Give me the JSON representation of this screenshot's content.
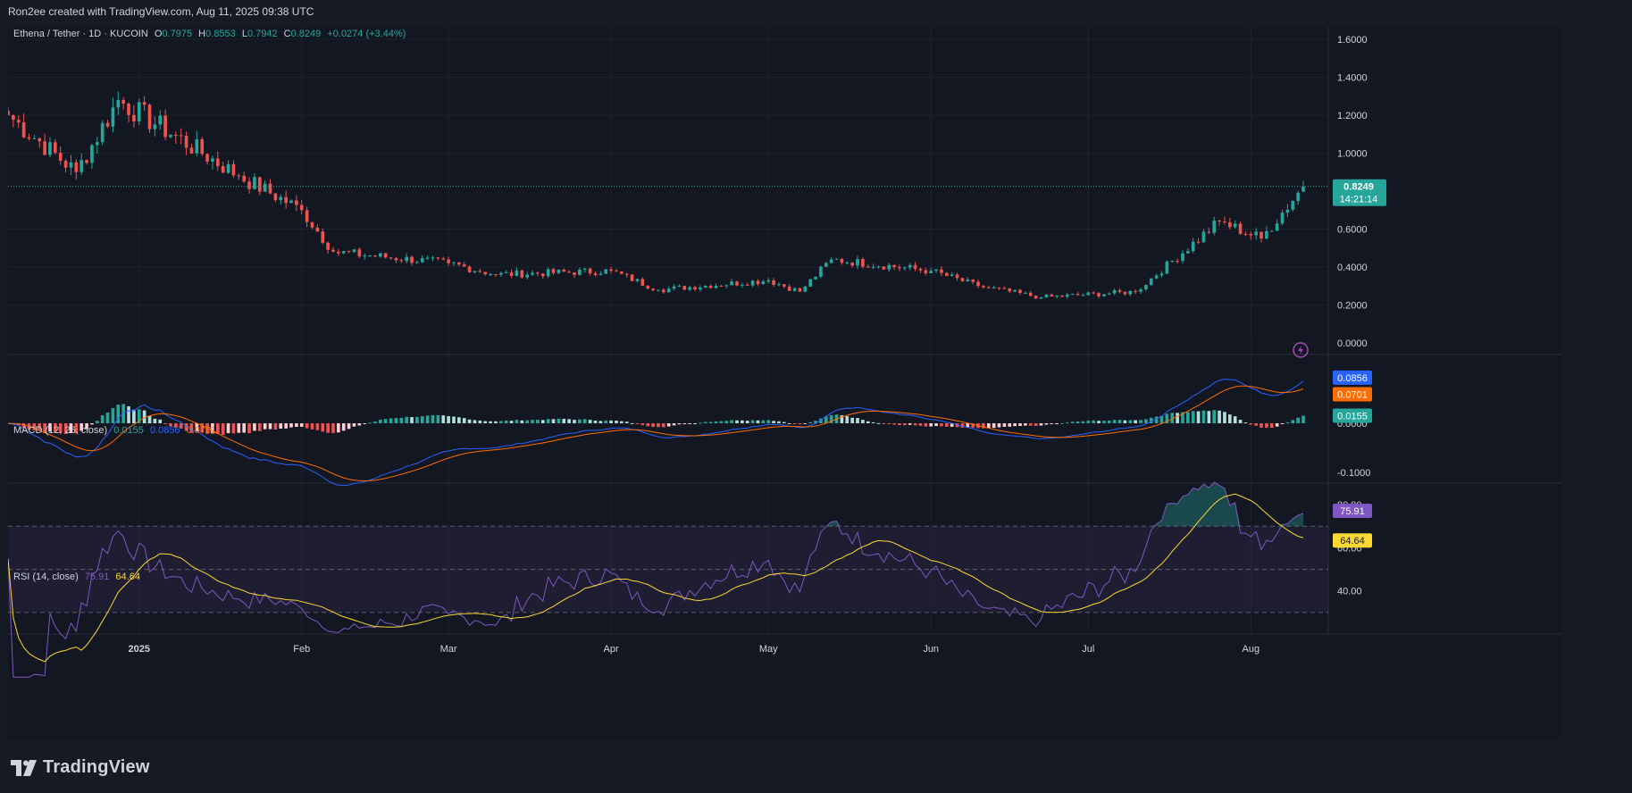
{
  "attribution": "Ron2ee created with TradingView.com, Aug 11, 2025 09:38 UTC",
  "brand": "TradingView",
  "icons": {
    "logo": "tradingview-logo-icon",
    "flash": "lightning-icon"
  },
  "colors": {
    "up": "#26a69a",
    "down": "#ef5350",
    "macd": "#2962ff",
    "signal": "#ff6d00",
    "rsi": "#7e57c2",
    "rsi_ma": "#fdd835"
  },
  "price_legend": {
    "symbol": "Ethena / Tether · 1D · KUCOIN",
    "o_label": "O",
    "o": "0.7975",
    "h_label": "H",
    "h": "0.8553",
    "l_label": "L",
    "l": "0.7942",
    "c_label": "C",
    "c": "0.8249",
    "change": "+0.0274 (+3.44%)"
  },
  "macd_legend": {
    "title": "MACD (12, 26, close)",
    "hist": "0.0155",
    "macd": "0.0856",
    "signal": "0.0701"
  },
  "rsi_legend": {
    "title": "RSI (14, close)",
    "rsi": "75.91",
    "ma": "64.64"
  },
  "price_badge": {
    "price": "0.8249",
    "countdown": "14:21:14"
  },
  "macd_badges": {
    "macd": "0.0856",
    "signal": "0.0701",
    "hist": "0.0155"
  },
  "rsi_badges": {
    "rsi": "75.91",
    "ma": "64.64"
  },
  "chart_data": [
    {
      "type": "candlestick",
      "title": "Ethena / Tether · 1D · KUCOIN",
      "ylim": [
        0,
        1.6
      ],
      "y_ticks": [
        "1.6000",
        "1.4000",
        "1.2000",
        "1.0000",
        "0.6000",
        "0.4000",
        "0.2000",
        "0.0000"
      ],
      "x_ticks": [
        {
          "label": "2025",
          "date": "2025-01-01"
        },
        {
          "label": "Feb",
          "date": "2025-02-01"
        },
        {
          "label": "Mar",
          "date": "2025-03-01"
        },
        {
          "label": "Apr",
          "date": "2025-04-01"
        },
        {
          "label": "May",
          "date": "2025-05-01"
        },
        {
          "label": "Jun",
          "date": "2025-06-01"
        },
        {
          "label": "Jul",
          "date": "2025-07-01"
        },
        {
          "label": "Aug",
          "date": "2025-08-01"
        }
      ],
      "start_date": "2024-12-07",
      "end_date": "2025-08-11",
      "key_closes": [
        {
          "date": "2024-12-07",
          "close": 1.2
        },
        {
          "date": "2024-12-20",
          "close": 0.9
        },
        {
          "date": "2024-12-28",
          "close": 1.28
        },
        {
          "date": "2025-01-20",
          "close": 0.88
        },
        {
          "date": "2025-02-01",
          "close": 0.7
        },
        {
          "date": "2025-02-07",
          "close": 0.48
        },
        {
          "date": "2025-03-01",
          "close": 0.42
        },
        {
          "date": "2025-03-10",
          "close": 0.36
        },
        {
          "date": "2025-04-01",
          "close": 0.38
        },
        {
          "date": "2025-04-10",
          "close": 0.28
        },
        {
          "date": "2025-05-01",
          "close": 0.33
        },
        {
          "date": "2025-05-07",
          "close": 0.27
        },
        {
          "date": "2025-05-13",
          "close": 0.44
        },
        {
          "date": "2025-06-01",
          "close": 0.38
        },
        {
          "date": "2025-06-10",
          "close": 0.3
        },
        {
          "date": "2025-06-22",
          "close": 0.24
        },
        {
          "date": "2025-07-10",
          "close": 0.27
        },
        {
          "date": "2025-07-26",
          "close": 0.64
        },
        {
          "date": "2025-08-03",
          "close": 0.55
        },
        {
          "date": "2025-08-11",
          "close": 0.8249
        }
      ],
      "last": {
        "open": 0.7975,
        "high": 0.8553,
        "low": 0.7942,
        "close": 0.8249
      }
    },
    {
      "type": "macd",
      "title": "MACD (12, 26, close)",
      "ylim": [
        -0.12,
        0.14
      ],
      "y_ticks": [
        "0.0000",
        "-0.1000"
      ],
      "last": {
        "macd": 0.0856,
        "signal": 0.0701,
        "hist": 0.0155
      }
    },
    {
      "type": "rsi",
      "title": "RSI (14, close)",
      "ylim": [
        20,
        90
      ],
      "y_ticks": [
        "80.00",
        "60.00",
        "40.00"
      ],
      "bands": {
        "upper": 70,
        "middle": 50,
        "lower": 30
      },
      "last": {
        "rsi": 75.91,
        "ma": 64.64
      }
    }
  ]
}
